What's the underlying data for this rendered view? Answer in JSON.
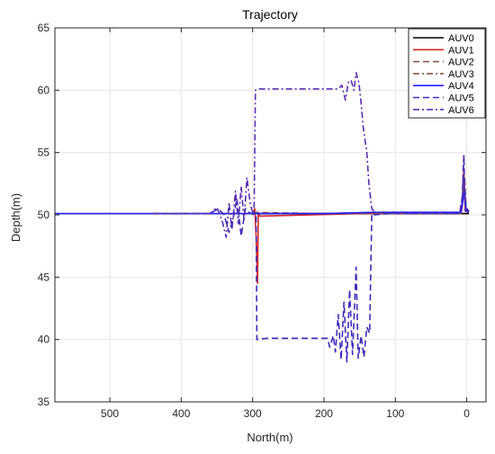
{
  "chart_data": {
    "type": "line",
    "title": "Trajectory",
    "xlabel": "North(m)",
    "ylabel": "Depth(m)",
    "xlim": [
      577,
      -27
    ],
    "x_reversed": true,
    "ylim": [
      35,
      65
    ],
    "xticks": [
      500,
      400,
      300,
      200,
      100,
      0
    ],
    "yticks": [
      35,
      40,
      45,
      50,
      55,
      60,
      65
    ],
    "grid": true,
    "legend_position": "top-right",
    "series": [
      {
        "name": "AUV0",
        "color": "#000000",
        "dash": "solid",
        "points": [
          [
            300,
            50.1
          ],
          [
            150,
            50.1
          ],
          [
            5,
            50.1
          ],
          [
            -3,
            50.1
          ]
        ]
      },
      {
        "name": "AUV1",
        "color": "#d62728",
        "dash": "solid",
        "points": [
          [
            300,
            50.1
          ],
          [
            297,
            50.5
          ],
          [
            295,
            48.2
          ],
          [
            293,
            44.5
          ],
          [
            292,
            50.2
          ],
          [
            290,
            49.9
          ],
          [
            150,
            50.1
          ],
          [
            8,
            50.1
          ],
          [
            6,
            50.8
          ],
          [
            5,
            52.5
          ],
          [
            4,
            53.6
          ],
          [
            3,
            51.8
          ],
          [
            2,
            50.3
          ],
          [
            -3,
            50.2
          ]
        ]
      },
      {
        "name": "AUV2",
        "color": "#8c564b",
        "dash": "dashed",
        "points": [
          [
            300,
            50.2
          ],
          [
            200,
            50.1
          ],
          [
            130,
            50.2
          ],
          [
            8,
            50.2
          ],
          [
            5,
            52.2
          ],
          [
            3,
            53.1
          ],
          [
            1,
            50.6
          ],
          [
            -3,
            50.3
          ]
        ]
      },
      {
        "name": "AUV3",
        "color": "#8c564b",
        "dash": "dashdot",
        "points": [
          [
            300,
            50.1
          ],
          [
            200,
            50.1
          ],
          [
            130,
            50.1
          ],
          [
            8,
            50.1
          ],
          [
            5,
            51.5
          ],
          [
            3,
            52.5
          ],
          [
            1,
            50.4
          ],
          [
            -3,
            50.2
          ]
        ]
      },
      {
        "name": "AUV4",
        "color": "#1f1fff",
        "dash": "solid",
        "points": [
          [
            577,
            50.1
          ],
          [
            450,
            50.1
          ],
          [
            300,
            50.1
          ],
          [
            200,
            50.1
          ],
          [
            130,
            50.2
          ],
          [
            8,
            50.2
          ],
          [
            5,
            51.3
          ],
          [
            3,
            52.0
          ],
          [
            1,
            50.5
          ],
          [
            -3,
            50.3
          ]
        ]
      },
      {
        "name": "AUV5",
        "color": "#3b2bb8",
        "dash": "dashed",
        "points": [
          [
            440,
            50.1
          ],
          [
            360,
            50.1
          ],
          [
            348,
            50.5
          ],
          [
            340,
            50.0
          ],
          [
            333,
            48.6
          ],
          [
            328,
            49.5
          ],
          [
            322,
            51.3
          ],
          [
            316,
            48.3
          ],
          [
            310,
            50.5
          ],
          [
            305,
            50.2
          ],
          [
            298,
            50.0
          ],
          [
            295,
            50.0
          ],
          [
            294,
            40.0
          ],
          [
            280,
            40.1
          ],
          [
            220,
            40.1
          ],
          [
            195,
            40.1
          ],
          [
            192,
            39.4
          ],
          [
            187,
            40.3
          ],
          [
            184,
            39.0
          ],
          [
            180,
            42.0
          ],
          [
            176,
            38.4
          ],
          [
            172,
            43.0
          ],
          [
            168,
            38.2
          ],
          [
            164,
            44.0
          ],
          [
            160,
            38.8
          ],
          [
            155,
            45.8
          ],
          [
            152,
            38.5
          ],
          [
            148,
            40.3
          ],
          [
            144,
            38.6
          ],
          [
            140,
            41.0
          ],
          [
            136,
            40.5
          ],
          [
            133,
            50.1
          ],
          [
            129,
            50.0
          ],
          [
            110,
            50.1
          ],
          [
            50,
            50.1
          ],
          [
            10,
            50.1
          ],
          [
            6,
            51.5
          ],
          [
            5,
            53.5
          ],
          [
            4,
            54.8
          ],
          [
            3,
            52.2
          ],
          [
            2,
            50.4
          ],
          [
            -3,
            50.2
          ]
        ]
      },
      {
        "name": "AUV6",
        "color": "#5a2fb0",
        "dash": "dashdot",
        "points": [
          [
            440,
            50.1
          ],
          [
            360,
            50.1
          ],
          [
            350,
            50.6
          ],
          [
            343,
            49.6
          ],
          [
            337,
            48.2
          ],
          [
            333,
            51.0
          ],
          [
            329,
            48.8
          ],
          [
            324,
            51.9
          ],
          [
            320,
            49.3
          ],
          [
            316,
            52.3
          ],
          [
            312,
            49.5
          ],
          [
            308,
            53.0
          ],
          [
            303,
            50.8
          ],
          [
            300,
            50.2
          ],
          [
            298,
            50.1
          ],
          [
            296,
            60.0
          ],
          [
            290,
            60.1
          ],
          [
            220,
            60.1
          ],
          [
            180,
            60.1
          ],
          [
            175,
            60.4
          ],
          [
            170,
            59.2
          ],
          [
            166,
            60.6
          ],
          [
            162,
            60.8
          ],
          [
            158,
            60.0
          ],
          [
            155,
            61.4
          ],
          [
            151,
            60.6
          ],
          [
            148,
            59.0
          ],
          [
            145,
            57.0
          ],
          [
            140,
            55.0
          ],
          [
            137,
            52.5
          ],
          [
            133,
            50.5
          ],
          [
            128,
            50.2
          ],
          [
            110,
            50.1
          ],
          [
            50,
            50.1
          ],
          [
            10,
            50.1
          ],
          [
            6,
            51.5
          ],
          [
            5,
            53.3
          ],
          [
            4,
            54.7
          ],
          [
            3,
            51.8
          ],
          [
            2,
            50.3
          ],
          [
            -3,
            50.2
          ]
        ]
      }
    ]
  }
}
